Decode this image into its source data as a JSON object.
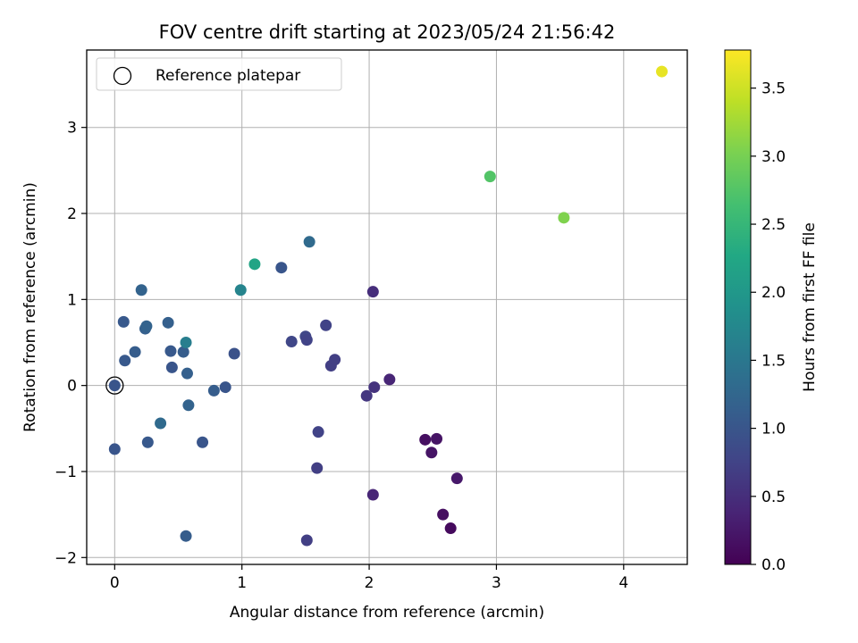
{
  "chart_data": {
    "type": "scatter",
    "title": "FOV centre drift starting at 2023/05/24 21:56:42",
    "xlabel": "Angular distance from reference (arcmin)",
    "ylabel": "Rotation from reference (arcmin)",
    "xlim": [
      -0.22,
      4.5
    ],
    "ylim": [
      -2.08,
      3.9
    ],
    "xticks": [
      0,
      1,
      2,
      3,
      4
    ],
    "yticks": [
      -2,
      -1,
      0,
      1,
      2,
      3
    ],
    "xtick_labels": [
      "0",
      "1",
      "2",
      "3",
      "4"
    ],
    "ytick_labels": [
      "−2",
      "−1",
      "0",
      "1",
      "2",
      "3"
    ],
    "grid": true,
    "legend": {
      "label": "Reference platepar",
      "placement": "top-left",
      "marker": "open-circle"
    },
    "reference_point": {
      "x": 0,
      "y": 0
    },
    "colorbar": {
      "label": "Hours from first FF file",
      "min": 0.0,
      "max": 3.78,
      "colormap": "viridis",
      "ticks": [
        0.0,
        0.5,
        1.0,
        1.5,
        2.0,
        2.5,
        3.0,
        3.5
      ],
      "tick_labels": [
        "0.0",
        "0.5",
        "1.0",
        "1.5",
        "2.0",
        "2.5",
        "3.0",
        "3.5"
      ]
    },
    "points": [
      {
        "x": 0.0,
        "y": 0.0,
        "c": 1.0
      },
      {
        "x": 0.07,
        "y": 0.74,
        "c": 1.05
      },
      {
        "x": 0.0,
        "y": -0.74,
        "c": 1.0
      },
      {
        "x": 0.08,
        "y": 0.29,
        "c": 1.05
      },
      {
        "x": 0.16,
        "y": 0.39,
        "c": 1.1
      },
      {
        "x": 0.21,
        "y": 1.11,
        "c": 1.2
      },
      {
        "x": 0.24,
        "y": 0.66,
        "c": 1.15
      },
      {
        "x": 0.25,
        "y": 0.69,
        "c": 1.2
      },
      {
        "x": 0.26,
        "y": -0.66,
        "c": 1.05
      },
      {
        "x": 0.36,
        "y": -0.44,
        "c": 1.3
      },
      {
        "x": 0.42,
        "y": 0.73,
        "c": 1.15
      },
      {
        "x": 0.44,
        "y": 0.4,
        "c": 1.05
      },
      {
        "x": 0.45,
        "y": 0.21,
        "c": 1.0
      },
      {
        "x": 0.54,
        "y": 0.39,
        "c": 1.1
      },
      {
        "x": 0.56,
        "y": 0.5,
        "c": 1.6
      },
      {
        "x": 0.57,
        "y": 0.14,
        "c": 1.15
      },
      {
        "x": 0.58,
        "y": -0.23,
        "c": 1.2
      },
      {
        "x": 0.56,
        "y": -1.75,
        "c": 1.1
      },
      {
        "x": 0.69,
        "y": -0.66,
        "c": 1.0
      },
      {
        "x": 0.78,
        "y": -0.06,
        "c": 1.1
      },
      {
        "x": 0.87,
        "y": -0.02,
        "c": 1.0
      },
      {
        "x": 0.94,
        "y": 0.37,
        "c": 0.95
      },
      {
        "x": 0.99,
        "y": 1.11,
        "c": 1.7
      },
      {
        "x": 1.1,
        "y": 1.41,
        "c": 2.2
      },
      {
        "x": 1.31,
        "y": 1.37,
        "c": 1.0
      },
      {
        "x": 1.39,
        "y": 0.51,
        "c": 0.8
      },
      {
        "x": 1.5,
        "y": 0.57,
        "c": 0.8
      },
      {
        "x": 1.51,
        "y": 0.53,
        "c": 0.75
      },
      {
        "x": 1.53,
        "y": 1.67,
        "c": 1.3
      },
      {
        "x": 1.51,
        "y": -1.8,
        "c": 0.7
      },
      {
        "x": 1.59,
        "y": -0.96,
        "c": 0.7
      },
      {
        "x": 1.6,
        "y": -0.54,
        "c": 0.75
      },
      {
        "x": 1.66,
        "y": 0.7,
        "c": 0.75
      },
      {
        "x": 1.7,
        "y": 0.23,
        "c": 0.7
      },
      {
        "x": 1.73,
        "y": 0.3,
        "c": 0.7
      },
      {
        "x": 1.98,
        "y": -0.12,
        "c": 0.6
      },
      {
        "x": 2.03,
        "y": 1.09,
        "c": 0.5
      },
      {
        "x": 2.03,
        "y": -1.27,
        "c": 0.4
      },
      {
        "x": 2.04,
        "y": -0.02,
        "c": 0.55
      },
      {
        "x": 2.16,
        "y": 0.07,
        "c": 0.4
      },
      {
        "x": 2.44,
        "y": -0.63,
        "c": 0.15
      },
      {
        "x": 2.49,
        "y": -0.78,
        "c": 0.2
      },
      {
        "x": 2.53,
        "y": -0.62,
        "c": 0.2
      },
      {
        "x": 2.58,
        "y": -1.5,
        "c": 0.15
      },
      {
        "x": 2.64,
        "y": -1.66,
        "c": 0.1
      },
      {
        "x": 2.69,
        "y": -1.08,
        "c": 0.25
      },
      {
        "x": 2.95,
        "y": 2.43,
        "c": 2.75
      },
      {
        "x": 3.53,
        "y": 1.95,
        "c": 3.05
      },
      {
        "x": 4.3,
        "y": 3.65,
        "c": 3.65
      }
    ]
  }
}
